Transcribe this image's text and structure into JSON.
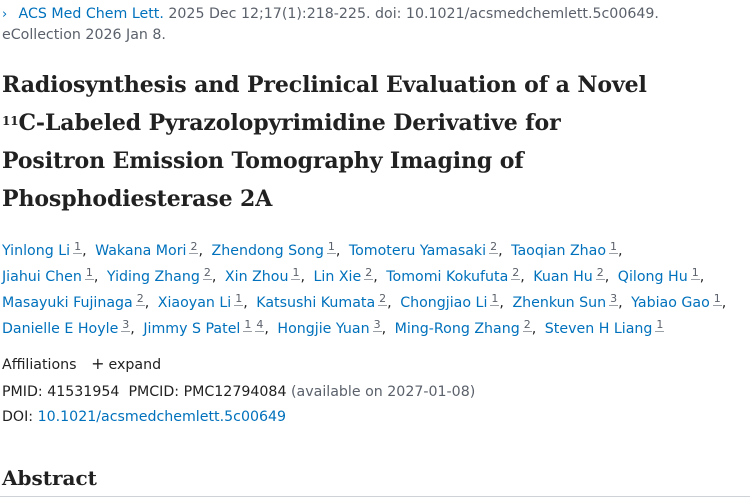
{
  "citation": {
    "journal": "ACS Med Chem Lett.",
    "details": " 2025 Dec 12;17(1):218-225. doi: 10.1021/acsmedchemlett.5c00649.",
    "ecollection": "eCollection 2026 Jan 8."
  },
  "title": {
    "line1": "Radiosynthesis and Preclinical Evaluation of a Novel",
    "iso_mass": "11",
    "line2_rest": "C-Labeled Pyrazolopyrimidine Derivative for",
    "line3": "Positron Emission Tomography Imaging of",
    "line4": "Phosphodiesterase 2A"
  },
  "authors": [
    {
      "name": "Yinlong Li",
      "aff": "1"
    },
    {
      "name": "Wakana Mori",
      "aff": "2"
    },
    {
      "name": "Zhendong Song",
      "aff": "1"
    },
    {
      "name": "Tomoteru Yamasaki",
      "aff": "2"
    },
    {
      "name": "Taoqian Zhao",
      "aff": "1"
    },
    {
      "name": "Jiahui Chen",
      "aff": "1"
    },
    {
      "name": "Yiding Zhang",
      "aff": "2"
    },
    {
      "name": "Xin Zhou",
      "aff": "1"
    },
    {
      "name": "Lin Xie",
      "aff": "2"
    },
    {
      "name": "Tomomi Kokufuta",
      "aff": "2"
    },
    {
      "name": "Kuan Hu",
      "aff": "2"
    },
    {
      "name": "Qilong Hu",
      "aff": "1"
    },
    {
      "name": "Masayuki Fujinaga",
      "aff": "2"
    },
    {
      "name": "Xiaoyan Li",
      "aff": "1"
    },
    {
      "name": "Katsushi Kumata",
      "aff": "2"
    },
    {
      "name": "Chongjiao Li",
      "aff": "1"
    },
    {
      "name": "Zhenkun Sun",
      "aff": "3"
    },
    {
      "name": "Yabiao Gao",
      "aff": "1"
    },
    {
      "name": "Danielle E Hoyle",
      "aff": "3"
    },
    {
      "name": "Jimmy S Patel",
      "aff": "1",
      "aff2": "4"
    },
    {
      "name": "Hongjie Yuan",
      "aff": "3"
    },
    {
      "name": "Ming-Rong Zhang",
      "aff": "2"
    },
    {
      "name": "Steven H Liang",
      "aff": "1"
    }
  ],
  "affiliations": {
    "label": "Affiliations",
    "toggle": "expand"
  },
  "ids": {
    "pmid_label": "PMID: ",
    "pmid": "41531954",
    "pmcid_label": "PMCID: ",
    "pmcid": "PMC12794084",
    "availability": "(available on 2027-01-08)"
  },
  "doi": {
    "label": "DOI: ",
    "value": "10.1021/acsmedchemlett.5c00649"
  },
  "abstract_heading": "Abstract",
  "colors": {
    "link": "#0071bc",
    "muted": "#5b616b",
    "text": "#212121"
  }
}
